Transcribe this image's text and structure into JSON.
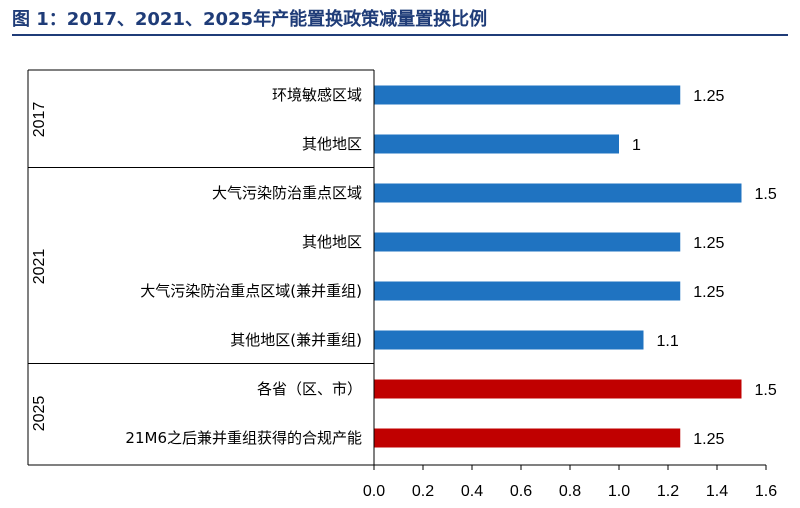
{
  "title": "图 1：2017、2021、2025年产能置换政策减量置换比例",
  "colors": {
    "standard": "#1f73c1",
    "highlight": "#c00000",
    "title": "#1f3c78"
  },
  "chart_data": {
    "type": "bar",
    "orientation": "horizontal",
    "xlim": [
      0,
      1.6
    ],
    "xticks": [
      "0.0",
      "0.2",
      "0.4",
      "0.6",
      "0.8",
      "1.0",
      "1.2",
      "1.4",
      "1.6"
    ],
    "groups": [
      {
        "name": "2017",
        "items": [
          {
            "label": "环境敏感区域",
            "value": 1.25,
            "value_label": "1.25",
            "color": "standard"
          },
          {
            "label": "其他地区",
            "value": 1,
            "value_label": "1",
            "color": "standard"
          }
        ]
      },
      {
        "name": "2021",
        "items": [
          {
            "label": "大气污染防治重点区域",
            "value": 1.5,
            "value_label": "1.5",
            "color": "standard"
          },
          {
            "label": "其他地区",
            "value": 1.25,
            "value_label": "1.25",
            "color": "standard"
          },
          {
            "label": "大气污染防治重点区域(兼并重组)",
            "value": 1.25,
            "value_label": "1.25",
            "color": "standard"
          },
          {
            "label": "其他地区(兼并重组)",
            "value": 1.1,
            "value_label": "1.1",
            "color": "standard"
          }
        ]
      },
      {
        "name": "2025",
        "items": [
          {
            "label": "各省（区、市）",
            "value": 1.5,
            "value_label": "1.5",
            "color": "highlight"
          },
          {
            "label": "21M6之后兼并重组获得的合规产能",
            "value": 1.25,
            "value_label": "1.25",
            "color": "highlight"
          }
        ]
      }
    ]
  }
}
